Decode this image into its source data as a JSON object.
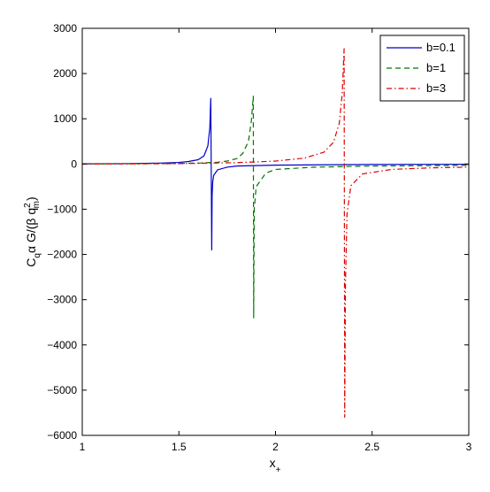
{
  "chart_data": {
    "type": "line",
    "title": "",
    "xlabel": "x",
    "xlabel_sub": "+",
    "ylabel": "C",
    "ylabel_sub": "q",
    "ylabel_rest": "α G/(β q",
    "ylabel_sup2": "2",
    "ylabel_subm": "m",
    "ylabel_close": ")",
    "xlim": [
      1,
      3
    ],
    "ylim": [
      -6000,
      3000
    ],
    "xticks": [
      1,
      1.5,
      2,
      2.5,
      3
    ],
    "xtick_labels": [
      "1",
      "1.5",
      "2",
      "2.5",
      "3"
    ],
    "yticks": [
      3000,
      2000,
      1000,
      0,
      -1000,
      -2000,
      -3000,
      -4000,
      -5000,
      -6000
    ],
    "ytick_labels": [
      "3000",
      "2000",
      "1000",
      "0",
      "−1000",
      "−2000",
      "−3000",
      "−4000",
      "−5000",
      "−6000"
    ],
    "grid": false,
    "legend_position": "top-right",
    "legend": [
      "b=0.1",
      "b=1",
      "b=3"
    ],
    "series": [
      {
        "name": "b=0.1",
        "color": "#0000cc",
        "style": "solid",
        "x": [
          1.0,
          1.2,
          1.4,
          1.5,
          1.55,
          1.6,
          1.63,
          1.65,
          1.66,
          1.665,
          1.67,
          1.672,
          1.675,
          1.68,
          1.7,
          1.75,
          1.8,
          2.0,
          2.5,
          3.0
        ],
        "y": [
          4,
          8,
          20,
          35,
          55,
          95,
          180,
          400,
          800,
          1450,
          -1900,
          -700,
          -400,
          -250,
          -130,
          -70,
          -45,
          -25,
          -10,
          -6
        ]
      },
      {
        "name": "b=1",
        "color": "#007700",
        "style": "dashed",
        "x": [
          1.0,
          1.3,
          1.5,
          1.6,
          1.7,
          1.75,
          1.8,
          1.83,
          1.86,
          1.875,
          1.885,
          1.887,
          1.89,
          1.9,
          1.95,
          2.0,
          2.2,
          2.5,
          3.0
        ],
        "y": [
          2,
          6,
          12,
          20,
          40,
          65,
          120,
          230,
          500,
          950,
          1500,
          -3400,
          -1000,
          -500,
          -200,
          -120,
          -70,
          -45,
          -30
        ]
      },
      {
        "name": "b=3",
        "color": "#dd0000",
        "style": "dashdot",
        "x": [
          1.0,
          1.5,
          1.8,
          2.0,
          2.15,
          2.25,
          2.3,
          2.33,
          2.345,
          2.355,
          2.358,
          2.362,
          2.37,
          2.39,
          2.45,
          2.6,
          2.8,
          3.0
        ],
        "y": [
          0,
          8,
          30,
          65,
          130,
          260,
          480,
          900,
          1550,
          2550,
          -5600,
          -2600,
          -1100,
          -480,
          -220,
          -120,
          -85,
          -70
        ]
      }
    ]
  }
}
